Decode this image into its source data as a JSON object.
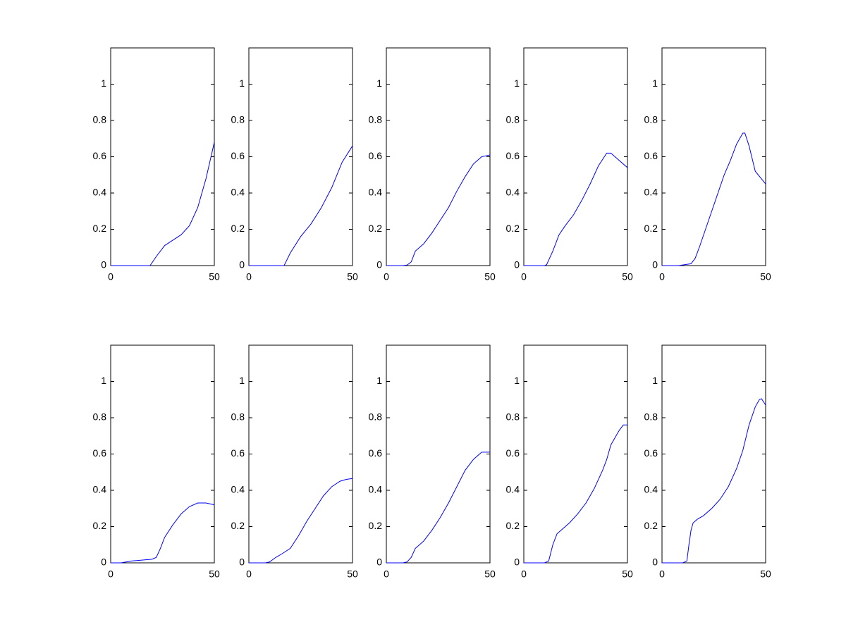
{
  "chart_data": [
    {
      "type": "line",
      "x": [
        0,
        19,
        22,
        26,
        30,
        34,
        38,
        42,
        46,
        50
      ],
      "values": [
        0,
        0,
        0.05,
        0.11,
        0.14,
        0.17,
        0.22,
        0.32,
        0.48,
        0.68
      ],
      "color": "#0000ff",
      "xlim": [
        0,
        50
      ],
      "ylim": [
        0,
        1.2
      ],
      "xticks": [
        0,
        50
      ],
      "yticks": [
        0,
        0.2,
        0.4,
        0.6,
        0.8,
        1
      ]
    },
    {
      "type": "line",
      "x": [
        0,
        17,
        20,
        25,
        30,
        35,
        40,
        45,
        50
      ],
      "values": [
        0,
        0,
        0.07,
        0.16,
        0.23,
        0.32,
        0.43,
        0.57,
        0.66
      ],
      "color": "#0000ff",
      "xlim": [
        0,
        50
      ],
      "ylim": [
        0,
        1.2
      ],
      "xticks": [
        0,
        50
      ],
      "yticks": [
        0,
        0.2,
        0.4,
        0.6,
        0.8,
        1
      ]
    },
    {
      "type": "line",
      "x": [
        0,
        8,
        10,
        12,
        14,
        18,
        22,
        26,
        30,
        34,
        38,
        42,
        46,
        50
      ],
      "values": [
        0,
        0,
        0.003,
        0.02,
        0.08,
        0.12,
        0.18,
        0.25,
        0.32,
        0.41,
        0.49,
        0.56,
        0.6,
        0.61
      ],
      "color": "#0000ff",
      "xlim": [
        0,
        50
      ],
      "ylim": [
        0,
        1.2
      ],
      "xticks": [
        0,
        50
      ],
      "yticks": [
        0,
        0.2,
        0.4,
        0.6,
        0.8,
        1
      ]
    },
    {
      "type": "line",
      "x": [
        0,
        10,
        11,
        14,
        17,
        20,
        24,
        28,
        32,
        36,
        40,
        42,
        45,
        50
      ],
      "values": [
        0,
        0,
        0.005,
        0.08,
        0.17,
        0.22,
        0.28,
        0.36,
        0.45,
        0.55,
        0.62,
        0.62,
        0.59,
        0.54
      ],
      "color": "#0000ff",
      "xlim": [
        0,
        50
      ],
      "ylim": [
        0,
        1.2
      ],
      "xticks": [
        0,
        50
      ],
      "yticks": [
        0,
        0.2,
        0.4,
        0.6,
        0.8,
        1
      ]
    },
    {
      "type": "line",
      "x": [
        0,
        8,
        14,
        16,
        18,
        21,
        24,
        27,
        30,
        33,
        36,
        39,
        40,
        42,
        45,
        50
      ],
      "values": [
        0,
        0,
        0.01,
        0.04,
        0.1,
        0.2,
        0.3,
        0.4,
        0.5,
        0.58,
        0.67,
        0.73,
        0.73,
        0.66,
        0.52,
        0.45
      ],
      "color": "#0000ff",
      "xlim": [
        0,
        50
      ],
      "ylim": [
        0,
        1.2
      ],
      "xticks": [
        0,
        50
      ],
      "yticks": [
        0,
        0.2,
        0.4,
        0.6,
        0.8,
        1
      ]
    },
    {
      "type": "line",
      "x": [
        0,
        5,
        10,
        15,
        20,
        22,
        24,
        26,
        30,
        34,
        38,
        42,
        46,
        50
      ],
      "values": [
        0,
        0,
        0.01,
        0.015,
        0.02,
        0.03,
        0.08,
        0.14,
        0.21,
        0.27,
        0.31,
        0.33,
        0.33,
        0.32
      ],
      "color": "#0000ff",
      "xlim": [
        0,
        50
      ],
      "ylim": [
        0,
        1.2
      ],
      "xticks": [
        0,
        50
      ],
      "yticks": [
        0,
        0.2,
        0.4,
        0.6,
        0.8,
        1
      ]
    },
    {
      "type": "line",
      "x": [
        0,
        8,
        10,
        13,
        16,
        20,
        24,
        28,
        32,
        36,
        40,
        44,
        47,
        50
      ],
      "values": [
        0,
        0,
        0.005,
        0.03,
        0.05,
        0.08,
        0.15,
        0.23,
        0.3,
        0.37,
        0.42,
        0.45,
        0.46,
        0.465
      ],
      "color": "#0000ff",
      "xlim": [
        0,
        50
      ],
      "ylim": [
        0,
        1.2
      ],
      "xticks": [
        0,
        50
      ],
      "yticks": [
        0,
        0.2,
        0.4,
        0.6,
        0.8,
        1
      ]
    },
    {
      "type": "line",
      "x": [
        0,
        8,
        10,
        12,
        14,
        18,
        22,
        26,
        30,
        34,
        38,
        42,
        46,
        50
      ],
      "values": [
        0,
        0,
        0.005,
        0.03,
        0.08,
        0.12,
        0.18,
        0.25,
        0.33,
        0.42,
        0.51,
        0.57,
        0.61,
        0.61
      ],
      "color": "#0000ff",
      "xlim": [
        0,
        50
      ],
      "ylim": [
        0,
        1.2
      ],
      "xticks": [
        0,
        50
      ],
      "yticks": [
        0,
        0.2,
        0.4,
        0.6,
        0.8,
        1
      ]
    },
    {
      "type": "line",
      "x": [
        0,
        10,
        12,
        14,
        16,
        18,
        22,
        26,
        30,
        34,
        38,
        40,
        42,
        46,
        48,
        50
      ],
      "values": [
        0,
        0,
        0.01,
        0.1,
        0.16,
        0.18,
        0.22,
        0.27,
        0.33,
        0.41,
        0.51,
        0.57,
        0.65,
        0.73,
        0.76,
        0.76
      ],
      "color": "#0000ff",
      "xlim": [
        0,
        50
      ],
      "ylim": [
        0,
        1.2
      ],
      "xticks": [
        0,
        50
      ],
      "yticks": [
        0,
        0.2,
        0.4,
        0.6,
        0.8,
        1
      ]
    },
    {
      "type": "line",
      "x": [
        0,
        10,
        12,
        13,
        14,
        15,
        17,
        20,
        24,
        28,
        32,
        36,
        39,
        42,
        45,
        47,
        48,
        50
      ],
      "values": [
        0,
        0,
        0.01,
        0.1,
        0.18,
        0.22,
        0.24,
        0.26,
        0.3,
        0.35,
        0.42,
        0.52,
        0.62,
        0.76,
        0.86,
        0.9,
        0.905,
        0.87
      ],
      "color": "#0000ff",
      "xlim": [
        0,
        50
      ],
      "ylim": [
        0,
        1.2
      ],
      "xticks": [
        0,
        50
      ],
      "yticks": [
        0,
        0.2,
        0.4,
        0.6,
        0.8,
        1
      ]
    }
  ]
}
